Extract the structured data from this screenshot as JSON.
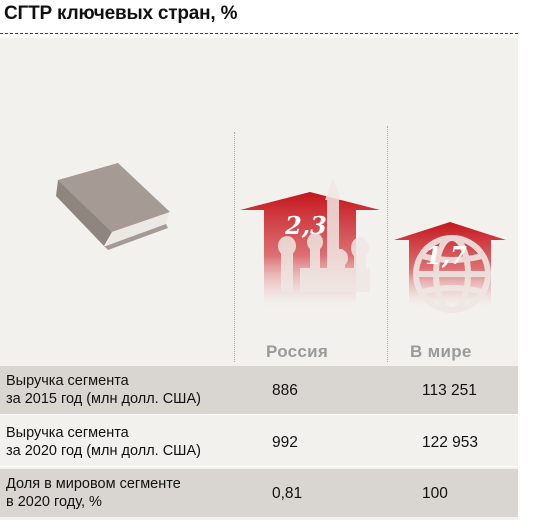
{
  "title": "СГТР ключевых стран, %",
  "colors": {
    "accent": "#c4161c",
    "panel": "#f2f1ee",
    "row_shade": "#d9d6d1",
    "icon_gray": "#a59a94"
  },
  "chart_data": [
    {
      "type": "bar",
      "title": "СГТР ключевых стран, %",
      "categories": [
        "Россия",
        "В мире"
      ],
      "values": [
        2.3,
        1.7
      ],
      "value_labels": [
        "2,3",
        "1,7"
      ],
      "unit": "%"
    },
    {
      "type": "table",
      "columns": [
        "Россия",
        "В мире"
      ],
      "rows": [
        {
          "label": "Выручка сегмента\nза 2015 год (млн долл. США)",
          "values": [
            "886",
            "113 251"
          ]
        },
        {
          "label": "Выручка сегмента\nза 2020 год (млн долл. США)",
          "values": [
            "992",
            "122 953"
          ]
        },
        {
          "label": "Доля в мировом сегменте\nв 2020 году, %",
          "values": [
            "0,81",
            "100"
          ]
        }
      ]
    }
  ]
}
